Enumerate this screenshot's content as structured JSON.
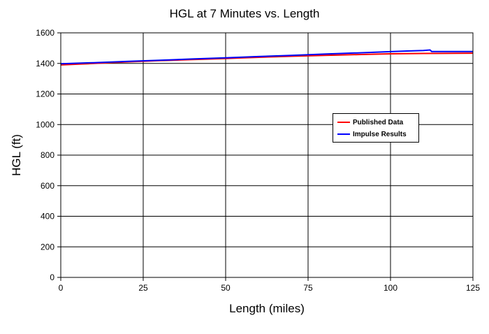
{
  "chart_data": {
    "type": "line",
    "title": "HGL at 7 Minutes vs. Length",
    "xlabel": "Length (miles)",
    "ylabel": "HGL (ft)",
    "xlim": [
      0,
      125
    ],
    "ylim": [
      0,
      1600
    ],
    "xticks": [
      0,
      25,
      50,
      75,
      100,
      125
    ],
    "yticks": [
      0,
      200,
      400,
      600,
      800,
      1000,
      1200,
      1400,
      1600
    ],
    "grid": true,
    "legend_position": "right",
    "series": [
      {
        "name": "Published Data",
        "color": "#ff0000",
        "x": [
          0,
          10,
          20,
          30,
          40,
          50,
          60,
          70,
          80,
          90,
          100,
          110,
          120,
          125
        ],
        "y": [
          1390,
          1400,
          1410,
          1418,
          1425,
          1432,
          1440,
          1447,
          1453,
          1458,
          1463,
          1465,
          1466,
          1467
        ]
      },
      {
        "name": "Impulse Results",
        "color": "#0000ff",
        "x": [
          0,
          10,
          20,
          30,
          40,
          50,
          60,
          70,
          80,
          90,
          100,
          105,
          110,
          112,
          112.5,
          120,
          125
        ],
        "y": [
          1398,
          1405,
          1413,
          1421,
          1429,
          1437,
          1445,
          1453,
          1461,
          1469,
          1477,
          1481,
          1485,
          1488,
          1478,
          1478,
          1478
        ]
      }
    ]
  }
}
